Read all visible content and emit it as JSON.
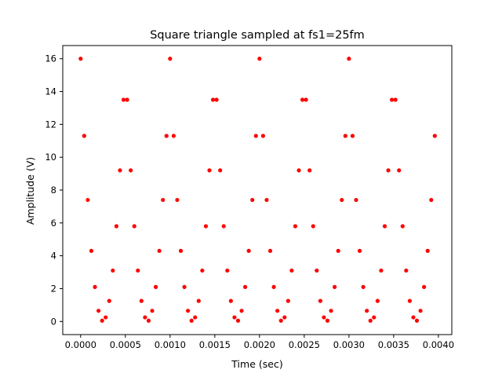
{
  "chart_data": {
    "type": "scatter",
    "title": "Square triangle sampled at fs1=25fm",
    "xlabel": "Time (sec)",
    "ylabel": "Amplitude (V)",
    "xlim": [
      -0.0002,
      0.00415
    ],
    "ylim": [
      -0.8,
      16.8
    ],
    "xticks": [
      0.0,
      0.0005,
      0.001,
      0.0015,
      0.002,
      0.0025,
      0.003,
      0.0035,
      0.004
    ],
    "xtick_labels": [
      "0.0000",
      "0.0005",
      "0.0010",
      "0.0015",
      "0.0020",
      "0.0025",
      "0.0030",
      "0.0035",
      "0.0040"
    ],
    "yticks": [
      0,
      2,
      4,
      6,
      8,
      10,
      12,
      14,
      16
    ],
    "ytick_labels": [
      "0",
      "2",
      "4",
      "6",
      "8",
      "10",
      "12",
      "14",
      "16"
    ],
    "grid": false,
    "marker_color": "#ff0000",
    "series": [
      {
        "x": [
          0.0,
          4e-05,
          8e-05,
          0.00012,
          0.00016,
          0.0002,
          0.00024,
          0.00028,
          0.00032,
          0.00036,
          0.0004,
          0.00044,
          0.00048,
          0.00052,
          0.00056,
          0.0006,
          0.00064,
          0.00068,
          0.00072,
          0.00076,
          0.0008,
          0.00084,
          0.00088,
          0.00092,
          0.00096,
          0.001,
          0.00104,
          0.00108,
          0.00112,
          0.00116,
          0.0012,
          0.00124,
          0.00128,
          0.00132,
          0.00136,
          0.0014,
          0.00144,
          0.00148,
          0.00152,
          0.00156,
          0.0016,
          0.00164,
          0.00168,
          0.00172,
          0.00176,
          0.0018,
          0.00184,
          0.00188,
          0.00192,
          0.00196,
          0.002,
          0.00204,
          0.00208,
          0.00212,
          0.00216,
          0.0022,
          0.00224,
          0.00228,
          0.00232,
          0.00236,
          0.0024,
          0.00244,
          0.00248,
          0.00252,
          0.00256,
          0.0026,
          0.00264,
          0.00268,
          0.00272,
          0.00276,
          0.0028,
          0.00284,
          0.00288,
          0.00292,
          0.00296,
          0.003,
          0.00304,
          0.00308,
          0.00312,
          0.00316,
          0.0032,
          0.00324,
          0.00328,
          0.00332,
          0.00336,
          0.0034,
          0.00344,
          0.00348,
          0.00352,
          0.00356,
          0.0036,
          0.00364,
          0.00368,
          0.00372,
          0.00376,
          0.0038,
          0.00384,
          0.00388,
          0.00392,
          0.00396
        ],
        "y": [
          16.0,
          11.3,
          7.4,
          4.3,
          2.1,
          0.65,
          0.05,
          0.25,
          1.25,
          3.1,
          5.8,
          9.2,
          13.5,
          13.5,
          9.2,
          5.8,
          3.1,
          1.25,
          0.25,
          0.05,
          0.65,
          2.1,
          4.3,
          7.4,
          11.3,
          16.0,
          11.3,
          7.4,
          4.3,
          2.1,
          0.65,
          0.05,
          0.25,
          1.25,
          3.1,
          5.8,
          9.2,
          13.5,
          13.5,
          9.2,
          5.8,
          3.1,
          1.25,
          0.25,
          0.05,
          0.65,
          2.1,
          4.3,
          7.4,
          11.3,
          16.0,
          11.3,
          7.4,
          4.3,
          2.1,
          0.65,
          0.05,
          0.25,
          1.25,
          3.1,
          5.8,
          9.2,
          13.5,
          13.5,
          9.2,
          5.8,
          3.1,
          1.25,
          0.25,
          0.05,
          0.65,
          2.1,
          4.3,
          7.4,
          11.3,
          16.0,
          11.3,
          7.4,
          4.3,
          2.1,
          0.65,
          0.05,
          0.25,
          1.25,
          3.1,
          5.8,
          9.2,
          13.5,
          13.5,
          9.2,
          5.8,
          3.1,
          1.25,
          0.25,
          0.05,
          0.65,
          2.1,
          4.3,
          7.4,
          11.3
        ]
      }
    ]
  }
}
